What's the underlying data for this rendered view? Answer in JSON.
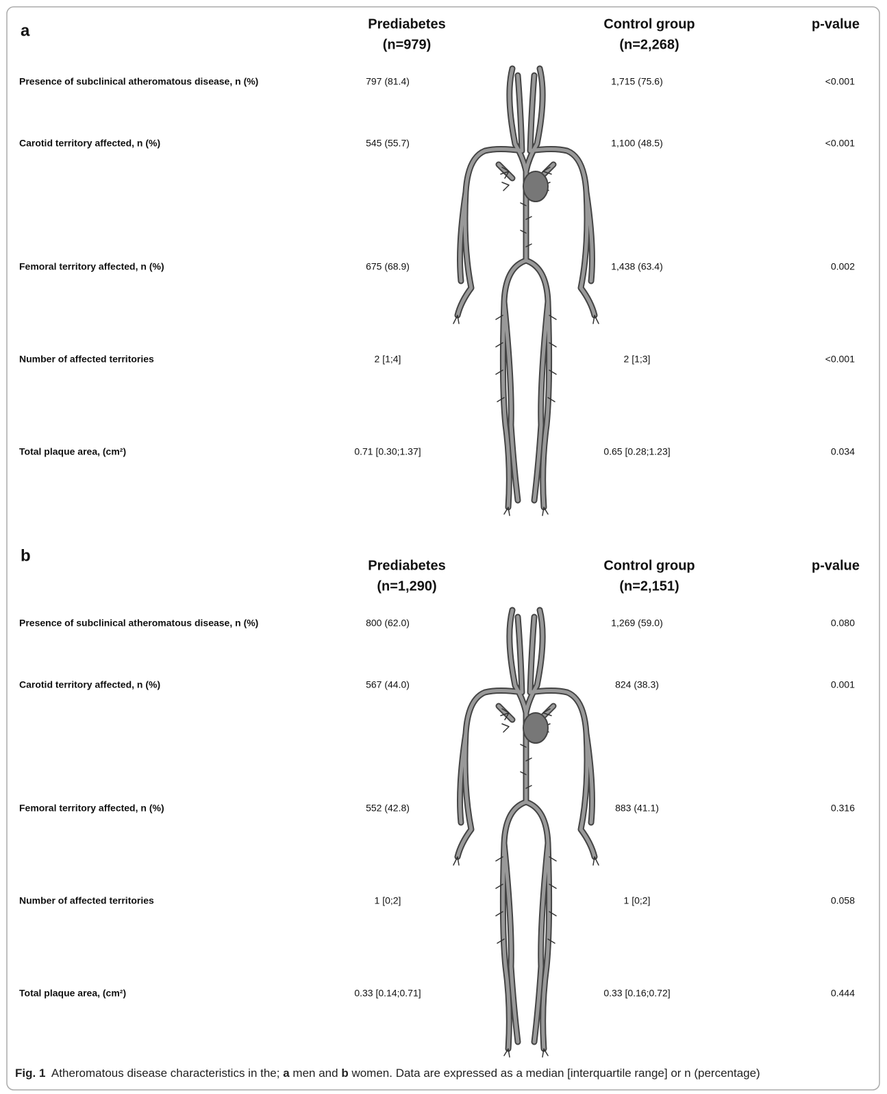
{
  "panels": [
    {
      "label": "a",
      "headers": [
        [
          "Prediabetes",
          "(n=979)"
        ],
        [
          "Control group",
          "(n=2,268)"
        ],
        [
          "p-value"
        ]
      ],
      "rows": [
        [
          "Presence of subclinical atheromatous disease, n (%)",
          "797 (81.4)",
          "1,715 (75.6)",
          "<0.001"
        ],
        [
          "Carotid territory affected, n (%)",
          "545 (55.7)",
          "1,100 (48.5)",
          "<0.001"
        ],
        [
          "Femoral territory affected, n (%)",
          "675 (68.9)",
          "1,438 (63.4)",
          "0.002"
        ],
        [
          "Number of affected territories",
          "2 [1;4]",
          "2 [1;3]",
          "<0.001"
        ],
        [
          "Total plaque area, (cm²)",
          "0.71 [0.30;1.37]",
          "0.65 [0.28;1.23]",
          "0.034"
        ]
      ]
    },
    {
      "label": "b",
      "headers": [
        [
          "Prediabetes",
          "(n=1,290)"
        ],
        [
          "Control group",
          "(n=2,151)"
        ],
        [
          "p-value"
        ]
      ],
      "rows": [
        [
          "Presence of subclinical atheromatous disease, n (%)",
          "800 (62.0)",
          "1,269 (59.0)",
          "0.080"
        ],
        [
          "Carotid territory affected, n (%)",
          "567 (44.0)",
          "824 (38.3)",
          "0.001"
        ],
        [
          "Femoral territory affected, n (%)",
          "552 (42.8)",
          "883 (41.1)",
          "0.316"
        ],
        [
          "Number of affected territories",
          "1 [0;2]",
          "1 [0;2]",
          "0.058"
        ],
        [
          "Total plaque area, (cm²)",
          "0.33 [0.14;0.71]",
          "0.33 [0.16;0.72]",
          "0.444"
        ]
      ]
    }
  ],
  "caption": [
    "Fig. 1",
    "Atheromatous disease characteristics in the;",
    "a",
    "men and",
    "b",
    "women. Data are expressed as a median [interquartile range] or n (percentage)"
  ]
}
